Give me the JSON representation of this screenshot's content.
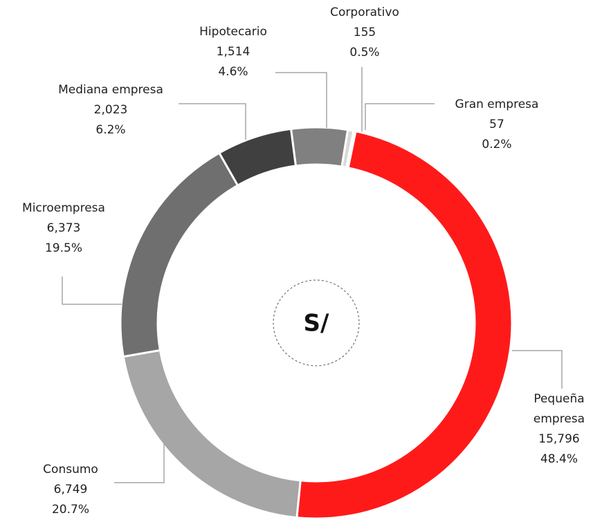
{
  "chart_data": {
    "type": "donut",
    "center_label": "S/",
    "categories": [
      "Gran empresa",
      "Pequeña empresa",
      "Consumo",
      "Microempresa",
      "Mediana empresa",
      "Hipotecario",
      "Corporativo"
    ],
    "values": [
      57,
      15796,
      6749,
      6373,
      2023,
      1514,
      155
    ],
    "value_labels": [
      "57",
      "15,796",
      "6,749",
      "6,373",
      "2,023",
      "1,514",
      "155"
    ],
    "shares": [
      0.2,
      48.4,
      20.7,
      19.5,
      6.2,
      4.6,
      0.5
    ],
    "share_labels": [
      "0.2%",
      "48.4%",
      "20.7%",
      "19.5%",
      "6.2%",
      "4.6%",
      "0.5%"
    ],
    "colors": [
      "#bfbfbf",
      "#ff1a1a",
      "#a6a6a6",
      "#6f6f6f",
      "#404040",
      "#808080",
      "#d9d9d9"
    ]
  }
}
